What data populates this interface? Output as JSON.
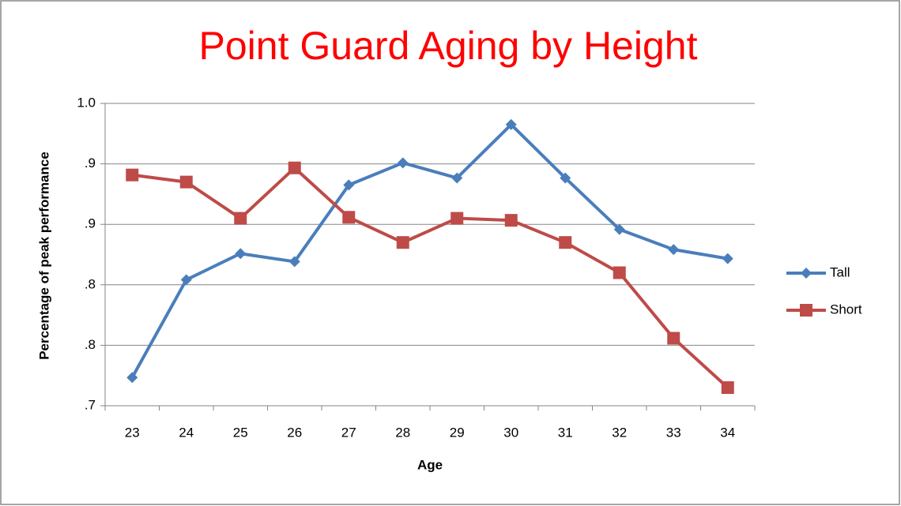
{
  "chart_data": {
    "type": "line",
    "title": "Point Guard Aging by Height",
    "x_label": "Age",
    "y_label": "Percentage of peak performance",
    "categories": [
      "23",
      "24",
      "25",
      "26",
      "27",
      "28",
      "29",
      "30",
      "31",
      "32",
      "33",
      "34"
    ],
    "series": [
      {
        "name": "Tall",
        "color": "#4a7ebb",
        "marker": "diamond",
        "values": [
          0.728,
          0.825,
          0.851,
          0.843,
          0.919,
          0.941,
          0.926,
          0.979,
          0.926,
          0.875,
          0.855,
          0.846
        ]
      },
      {
        "name": "Short",
        "color": "#be4b48",
        "marker": "square",
        "values": [
          0.929,
          0.922,
          0.886,
          0.936,
          0.887,
          0.862,
          0.886,
          0.884,
          0.862,
          0.832,
          0.767,
          0.718
        ]
      }
    ],
    "ylim": [
      0.7,
      1.0
    ],
    "yticks": [
      {
        "value": 0.7,
        "label": ".7"
      },
      {
        "value": 0.76,
        "label": ".8"
      },
      {
        "value": 0.82,
        "label": ".8"
      },
      {
        "value": 0.88,
        "label": ".9"
      },
      {
        "value": 0.94,
        "label": ".9"
      },
      {
        "value": 1.0,
        "label": "1.0"
      }
    ],
    "grid": true,
    "legend": "right"
  }
}
